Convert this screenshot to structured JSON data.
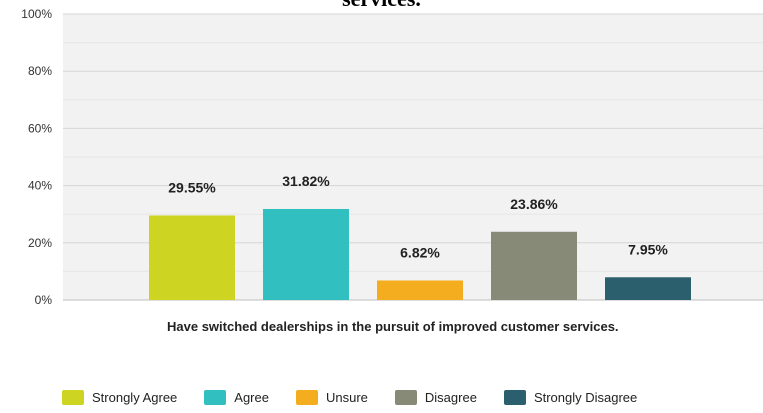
{
  "chart_data": {
    "type": "bar",
    "title": "services.",
    "xlabel": "Have switched dealerships in the pursuit of improved customer services.",
    "ylabel": "",
    "ylim": [
      0,
      100
    ],
    "yticks": [
      "100%",
      "80%",
      "60%",
      "40%",
      "20%",
      "0%"
    ],
    "ytick_values": [
      100,
      80,
      60,
      40,
      20,
      0
    ],
    "grid": true,
    "legend_position": "bottom",
    "series": [
      {
        "name": "Strongly Agree",
        "value": 29.55,
        "label": "29.55%",
        "color": "#cdd422"
      },
      {
        "name": "Agree",
        "value": 31.82,
        "label": "31.82%",
        "color": "#31bfbf"
      },
      {
        "name": "Unsure",
        "value": 6.82,
        "label": "6.82%",
        "color": "#f4ad1e"
      },
      {
        "name": "Disagree",
        "value": 23.86,
        "label": "23.86%",
        "color": "#878a77"
      },
      {
        "name": "Strongly Disagree",
        "value": 7.95,
        "label": "7.95%",
        "color": "#2c5f6e"
      }
    ]
  }
}
